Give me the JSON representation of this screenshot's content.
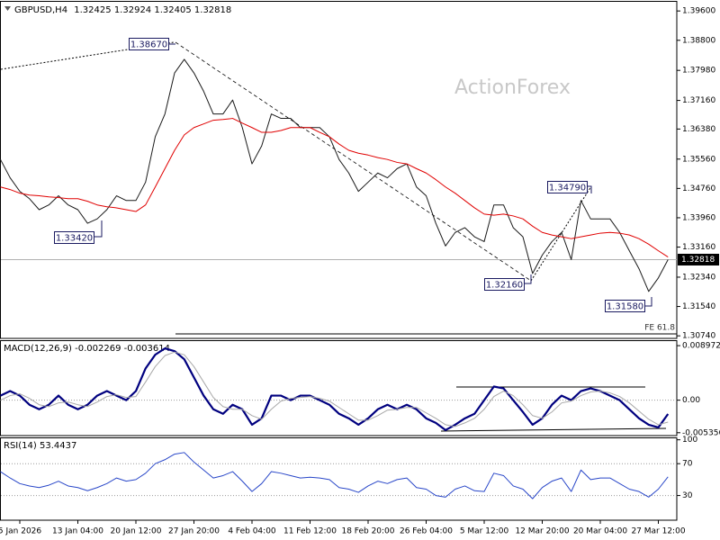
{
  "chart_data": [
    {
      "type": "line",
      "symbol": "GBPUSD,H4",
      "ohlc": [
        1.32425,
        1.32924,
        1.32405,
        1.32818
      ],
      "watermark": "ActionForex",
      "annotations": [
        "1.38670",
        "1.33420",
        "1.32160",
        "1.34790",
        "1.31580"
      ],
      "fe_label": "FE 61.8",
      "ylim": [
        1.3067,
        1.3985
      ],
      "yticks": [
        {
          "value": 1.396,
          "label": "1.39600"
        },
        {
          "value": 1.388,
          "label": "1.38800"
        },
        {
          "value": 1.3798,
          "label": "1.37980"
        },
        {
          "value": 1.3716,
          "label": "1.37160"
        },
        {
          "value": 1.3638,
          "label": "1.36380"
        },
        {
          "value": 1.3556,
          "label": "1.35560"
        },
        {
          "value": 1.3476,
          "label": "1.34760"
        },
        {
          "value": 1.3396,
          "label": "1.33960"
        },
        {
          "value": 1.3316,
          "label": "1.33160"
        },
        {
          "value": 1.3234,
          "label": "1.32340"
        },
        {
          "value": 1.3154,
          "label": "1.31540"
        },
        {
          "value": 1.3074,
          "label": "1.30740"
        }
      ],
      "series": [
        {
          "color": "#1a1a1a",
          "values": [
            1.3555,
            1.3505,
            1.3468,
            1.3448,
            1.3418,
            1.3431,
            1.3456,
            1.3431,
            1.3418,
            1.3381,
            1.3393,
            1.3418,
            1.3456,
            1.3443,
            1.3443,
            1.3493,
            1.3617,
            1.3679,
            1.3791,
            1.3828,
            1.3791,
            1.3741,
            1.3679,
            1.3679,
            1.3717,
            1.3642,
            1.3543,
            1.3592,
            1.3679,
            1.3667,
            1.3667,
            1.3642,
            1.3642,
            1.3642,
            1.3617,
            1.3555,
            1.3518,
            1.3468,
            1.3493,
            1.3518,
            1.3505,
            1.353,
            1.3543,
            1.348,
            1.3456,
            1.3381,
            1.3319,
            1.3356,
            1.3369,
            1.3344,
            1.3331,
            1.3431,
            1.3431,
            1.3369,
            1.3344,
            1.3244,
            1.3294,
            1.3331,
            1.3356,
            1.3282,
            1.3443,
            1.3393,
            1.3393,
            1.3393,
            1.3356,
            1.3306,
            1.3257,
            1.3195,
            1.3232,
            1.32818
          ]
        },
        {
          "color": "#e00000",
          "values": [
            1.348,
            1.3473,
            1.3463,
            1.3458,
            1.3456,
            1.3453,
            1.3451,
            1.3448,
            1.3448,
            1.3441,
            1.3431,
            1.3426,
            1.3423,
            1.3418,
            1.3413,
            1.3431,
            1.348,
            1.353,
            1.358,
            1.3622,
            1.3642,
            1.3652,
            1.3662,
            1.3664,
            1.3667,
            1.3654,
            1.3642,
            1.3629,
            1.3629,
            1.3634,
            1.3642,
            1.3642,
            1.3642,
            1.3629,
            1.3617,
            1.3597,
            1.358,
            1.3572,
            1.3567,
            1.356,
            1.3555,
            1.3547,
            1.3543,
            1.353,
            1.3518,
            1.35,
            1.348,
            1.3463,
            1.3443,
            1.3423,
            1.3406,
            1.3403,
            1.3406,
            1.3401,
            1.3393,
            1.3373,
            1.3356,
            1.3349,
            1.3344,
            1.3339,
            1.3344,
            1.3349,
            1.3354,
            1.3356,
            1.3354,
            1.3349,
            1.3339,
            1.3324,
            1.3306,
            1.3289
          ]
        }
      ]
    },
    {
      "type": "line",
      "title": "MACD(12,26,9)",
      "header_values": [
        -0.002269,
        -0.003614
      ],
      "ylim": [
        -0.00583,
        0.00987
      ],
      "yticks": [
        0.008972,
        {
          "value": 0,
          "label": "0.00"
        },
        -0.005356
      ],
      "levels": [
        0
      ],
      "series": [
        {
          "color": "#00007f",
          "width": 2.2,
          "values": [
            0.00075,
            0.0015,
            0.00075,
            -0.00075,
            -0.0015,
            -0.00075,
            0.00075,
            -0.00075,
            -0.0015,
            -0.00075,
            0.00075,
            0.0015,
            0.00075,
            0,
            0.0015,
            0.00523,
            0.00748,
            0.00852,
            0.00807,
            0.00673,
            0.00374,
            0.00075,
            -0.0015,
            -0.00224,
            -0.00075,
            -0.0015,
            -0.00404,
            -0.00299,
            0.00075,
            0.00075,
            0,
            0.00075,
            0.00075,
            0,
            -0.00075,
            -0.00224,
            -0.00299,
            -0.00404,
            -0.00299,
            -0.0015,
            -0.00075,
            -0.0015,
            -0.00075,
            -0.0015,
            -0.00299,
            -0.00374,
            -0.00493,
            -0.00404,
            -0.00299,
            -0.00224,
            0,
            0.00224,
            0.00194,
            0,
            -0.00194,
            -0.00404,
            -0.00299,
            -0.00075,
            0.00075,
            0,
            0.0015,
            0.00194,
            0.0015,
            0.00075,
            0,
            -0.0015,
            -0.00299,
            -0.00404,
            -0.00449,
            -0.002269
          ]
        },
        {
          "color": "#a8a8a8",
          "width": 1,
          "values": [
            0,
            0.00075,
            0.00105,
            0.0003,
            -0.00075,
            -0.00105,
            -0.00045,
            -0.0003,
            -0.00075,
            -0.00105,
            -0.0003,
            0.0006,
            0.0009,
            0.00045,
            0.0006,
            0.00299,
            0.00553,
            0.00733,
            0.00792,
            0.00747,
            0.00553,
            0.00299,
            0.00045,
            -0.00105,
            -0.0015,
            -0.0015,
            -0.00254,
            -0.00314,
            -0.0015,
            -0.00015,
            0.0003,
            0.00045,
            0.0006,
            0.0003,
            -0.00015,
            -0.0012,
            -0.00224,
            -0.00329,
            -0.00329,
            -0.00254,
            -0.00164,
            -0.0015,
            -0.0012,
            -0.0012,
            -0.00209,
            -0.00299,
            -0.00404,
            -0.00434,
            -0.00374,
            -0.00299,
            -0.0015,
            0.0006,
            0.0015,
            0.00075,
            -0.00075,
            -0.00254,
            -0.00299,
            -0.00194,
            -0.00045,
            -0.00015,
            0.00075,
            0.00135,
            0.0015,
            0.0012,
            0.0006,
            -0.00045,
            -0.00179,
            -0.00314,
            -0.00404,
            -0.003614
          ]
        }
      ]
    },
    {
      "type": "line",
      "title": "RSI(14)",
      "header_values": [
        53.4437
      ],
      "ylim": [
        -1,
        103
      ],
      "yticks": [
        100,
        70,
        30
      ],
      "levels": [
        70,
        30
      ],
      "x": [
        null,
        null,
        "5 Jan 2026",
        null,
        null,
        null,
        null,
        null,
        "13 Jan 04:00",
        null,
        null,
        null,
        null,
        null,
        "20 Jan 12:00",
        null,
        null,
        null,
        null,
        null,
        "27 Jan 20:00",
        null,
        null,
        null,
        null,
        null,
        "4 Feb 04:00",
        null,
        null,
        null,
        null,
        null,
        "11 Feb 12:00",
        null,
        null,
        null,
        null,
        null,
        "18 Feb 20:00",
        null,
        null,
        null,
        null,
        null,
        "26 Feb 04:00",
        null,
        null,
        null,
        null,
        null,
        "5 Mar 12:00",
        null,
        null,
        null,
        null,
        null,
        "12 Mar 20:00",
        null,
        null,
        null,
        null,
        null,
        "20 Mar 04:00",
        null,
        null,
        null,
        null,
        null,
        "27 Mar 12:00",
        null
      ],
      "series": [
        {
          "color": "#2846c8",
          "width": 1,
          "values": [
            60,
            52,
            45,
            42,
            40,
            43,
            48,
            42,
            40,
            36,
            40,
            45,
            52,
            48,
            50,
            58,
            70,
            75,
            82,
            84,
            72,
            62,
            52,
            55,
            60,
            48,
            35,
            45,
            60,
            58,
            55,
            52,
            53,
            52,
            50,
            40,
            38,
            34,
            42,
            48,
            45,
            50,
            52,
            40,
            38,
            30,
            28,
            38,
            42,
            36,
            35,
            58,
            55,
            42,
            38,
            26,
            40,
            48,
            52,
            35,
            62,
            50,
            52,
            52,
            45,
            38,
            35,
            28,
            38,
            53.4437
          ]
        }
      ]
    }
  ]
}
